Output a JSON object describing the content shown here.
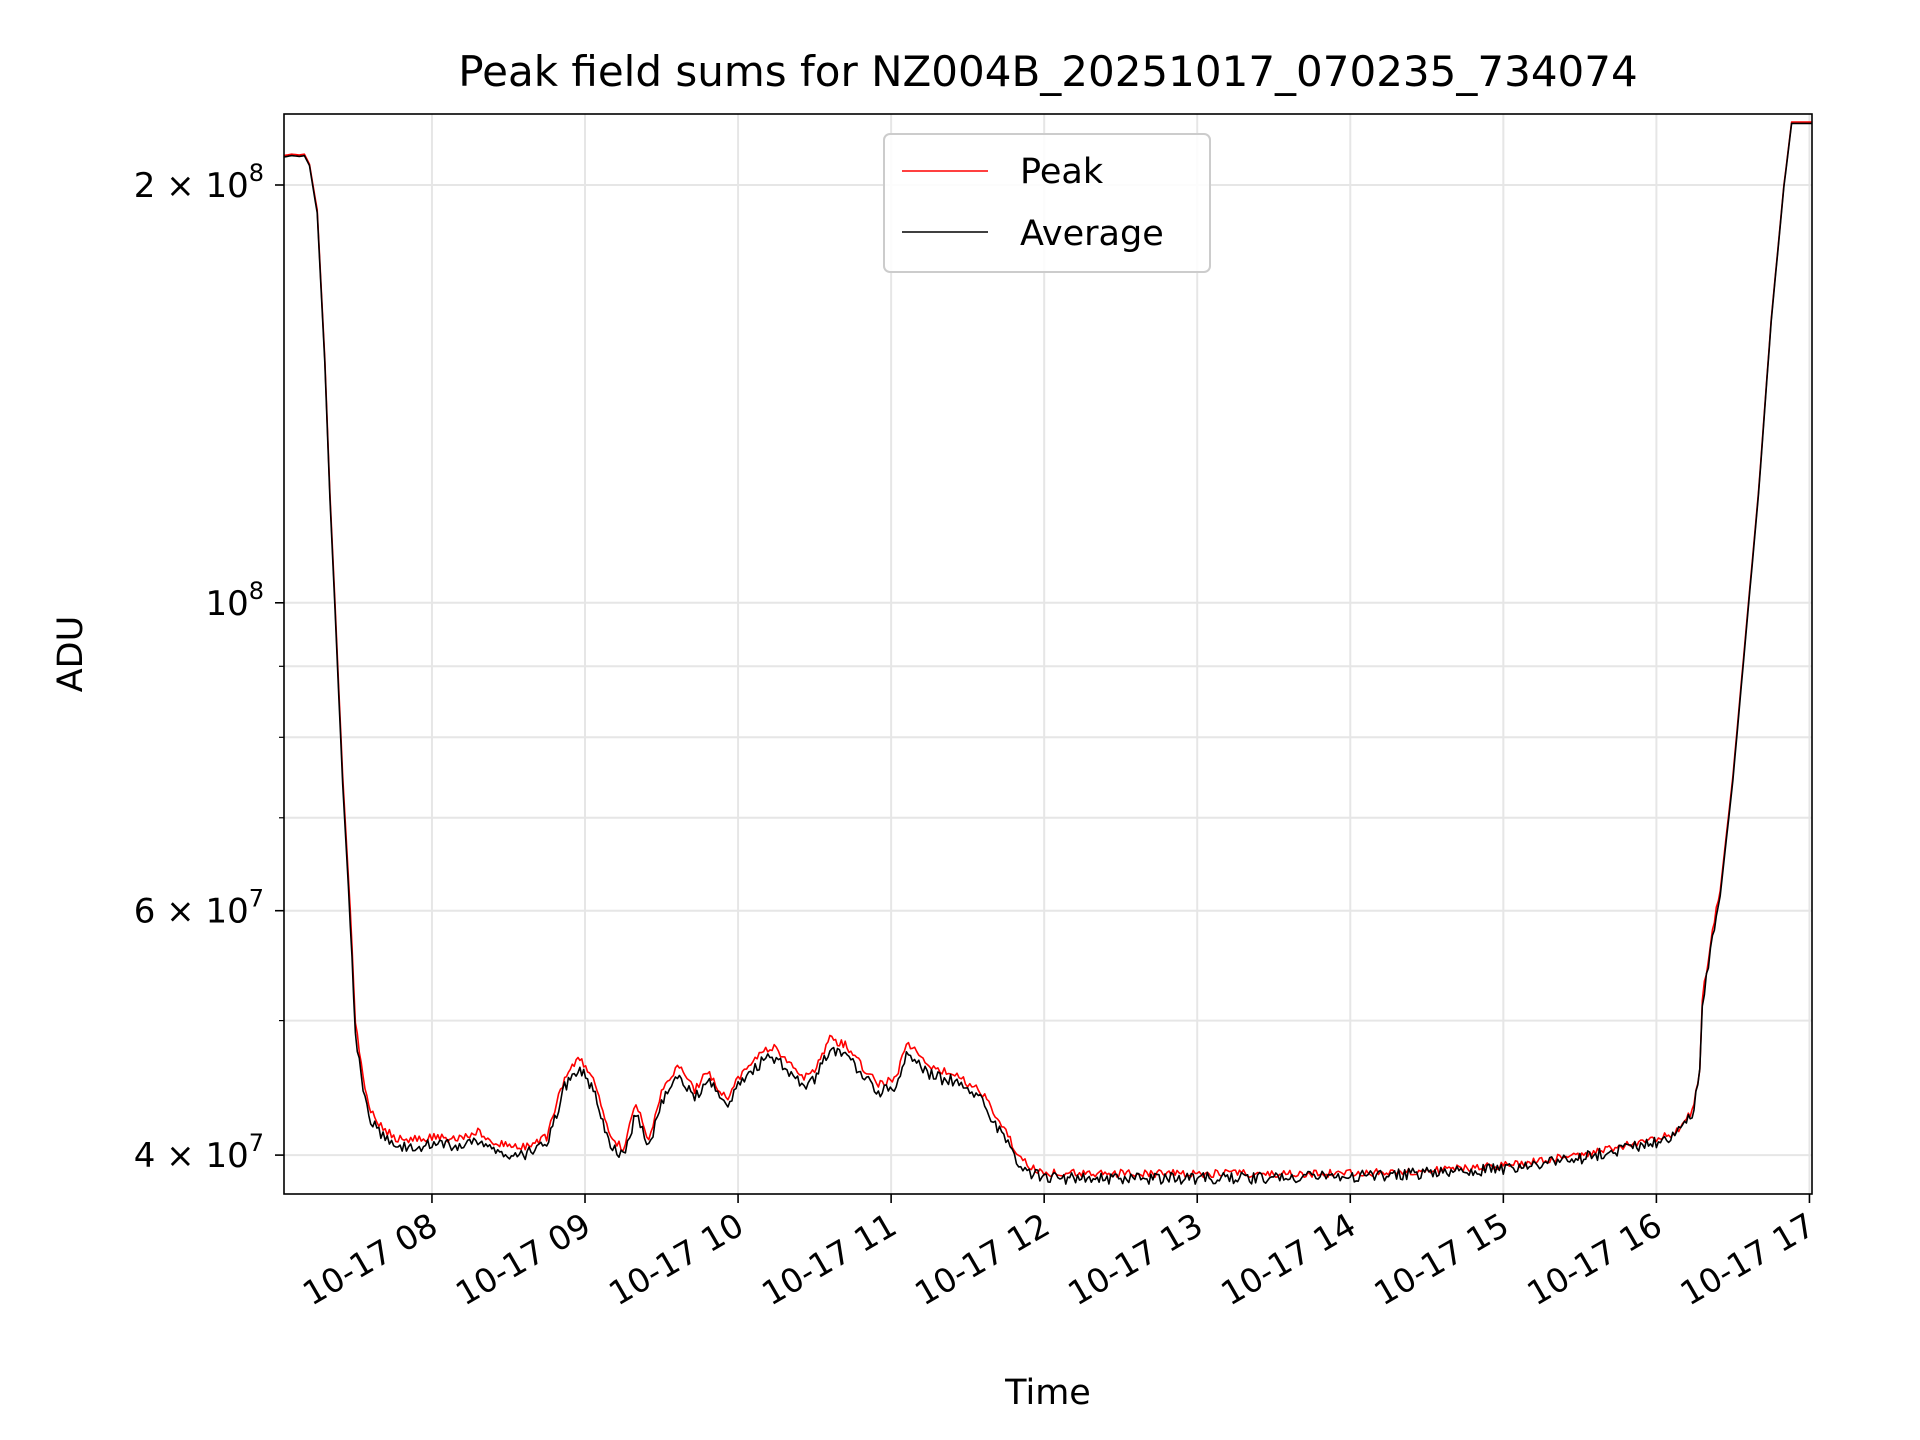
{
  "chart_data": {
    "type": "line",
    "title": "Peak field sums for NZ004B_20251017_070235_734074",
    "xlabel": "Time",
    "ylabel": "ADU",
    "y_scale": "log",
    "ylim": [
      37500000,
      225000000
    ],
    "xlim": [
      "2025-10-17 07:02",
      "2025-10-17 17:01"
    ],
    "grid": true,
    "legend_position": "upper center",
    "x_ticks": [
      {
        "t": "2025-10-17 08:00",
        "label": "10-17 08"
      },
      {
        "t": "2025-10-17 09:00",
        "label": "10-17 09"
      },
      {
        "t": "2025-10-17 10:00",
        "label": "10-17 10"
      },
      {
        "t": "2025-10-17 11:00",
        "label": "10-17 11"
      },
      {
        "t": "2025-10-17 12:00",
        "label": "10-17 12"
      },
      {
        "t": "2025-10-17 13:00",
        "label": "10-17 13"
      },
      {
        "t": "2025-10-17 14:00",
        "label": "10-17 14"
      },
      {
        "t": "2025-10-17 15:00",
        "label": "10-17 15"
      },
      {
        "t": "2025-10-17 16:00",
        "label": "10-17 16"
      },
      {
        "t": "2025-10-17 17:00",
        "label": "10-17 17"
      }
    ],
    "y_ticks_major": [
      {
        "v": 40000000,
        "base": "4",
        "exp": "7"
      },
      {
        "v": 60000000,
        "base": "6",
        "exp": "7"
      },
      {
        "v": 100000000,
        "base": "",
        "exp": "8"
      },
      {
        "v": 200000000,
        "base": "2",
        "exp": "8"
      }
    ],
    "y_ticks_minor": [
      50000000,
      70000000,
      80000000,
      90000000
    ],
    "series": [
      {
        "name": "Peak",
        "color": "#ff0000",
        "x": [
          "2025-10-17 07:02",
          "2025-10-17 07:05",
          "2025-10-17 07:08",
          "2025-10-17 07:10",
          "2025-10-17 07:12",
          "2025-10-17 07:15",
          "2025-10-17 07:18",
          "2025-10-17 07:20",
          "2025-10-17 07:22",
          "2025-10-17 07:25",
          "2025-10-17 07:28",
          "2025-10-17 07:30",
          "2025-10-17 07:33",
          "2025-10-17 07:36",
          "2025-10-17 07:40",
          "2025-10-17 07:45",
          "2025-10-17 07:50",
          "2025-10-17 07:55",
          "2025-10-17 08:00",
          "2025-10-17 08:10",
          "2025-10-17 08:18",
          "2025-10-17 08:25",
          "2025-10-17 08:35",
          "2025-10-17 08:45",
          "2025-10-17 08:52",
          "2025-10-17 08:58",
          "2025-10-17 09:04",
          "2025-10-17 09:10",
          "2025-10-17 09:15",
          "2025-10-17 09:20",
          "2025-10-17 09:25",
          "2025-10-17 09:30",
          "2025-10-17 09:37",
          "2025-10-17 09:43",
          "2025-10-17 09:48",
          "2025-10-17 09:52",
          "2025-10-17 09:56",
          "2025-10-17 10:00",
          "2025-10-17 10:05",
          "2025-10-17 10:10",
          "2025-10-17 10:15",
          "2025-10-17 10:20",
          "2025-10-17 10:25",
          "2025-10-17 10:30",
          "2025-10-17 10:36",
          "2025-10-17 10:42",
          "2025-10-17 10:48",
          "2025-10-17 10:55",
          "2025-10-17 11:02",
          "2025-10-17 11:06",
          "2025-10-17 11:10",
          "2025-10-17 11:15",
          "2025-10-17 11:20",
          "2025-10-17 11:25",
          "2025-10-17 11:30",
          "2025-10-17 11:35",
          "2025-10-17 11:40",
          "2025-10-17 11:45",
          "2025-10-17 11:50",
          "2025-10-17 11:55",
          "2025-10-17 12:00",
          "2025-10-17 12:10",
          "2025-10-17 12:30",
          "2025-10-17 13:00",
          "2025-10-17 13:30",
          "2025-10-17 14:00",
          "2025-10-17 14:30",
          "2025-10-17 15:00",
          "2025-10-17 15:30",
          "2025-10-17 15:50",
          "2025-10-17 16:00",
          "2025-10-17 16:08",
          "2025-10-17 16:14",
          "2025-10-17 16:17",
          "2025-10-17 16:18",
          "2025-10-17 16:22",
          "2025-10-17 16:25",
          "2025-10-17 16:30",
          "2025-10-17 16:35",
          "2025-10-17 16:40",
          "2025-10-17 16:45",
          "2025-10-17 16:50",
          "2025-10-17 16:53",
          "2025-10-17 17:01"
        ],
        "y": [
          210000000,
          210500000,
          210200000,
          210500000,
          207000000,
          192000000,
          150000000,
          120000000,
          100000000,
          75000000,
          60000000,
          50000000,
          45500000,
          43000000,
          42000000,
          41200000,
          41000000,
          41100000,
          41200000,
          41100000,
          41600000,
          40800000,
          40500000,
          41200000,
          45500000,
          47000000,
          45000000,
          41000000,
          40500000,
          43500000,
          41000000,
          44500000,
          46500000,
          44500000,
          46000000,
          44800000,
          44000000,
          45500000,
          46500000,
          47500000,
          47800000,
          46500000,
          45500000,
          46000000,
          48500000,
          48000000,
          46500000,
          45000000,
          45500000,
          48000000,
          47500000,
          46500000,
          46000000,
          45800000,
          45000000,
          44500000,
          43000000,
          41500000,
          40000000,
          39200000,
          38900000,
          38800000,
          38800000,
          38800000,
          38800000,
          38800000,
          39000000,
          39300000,
          40000000,
          40700000,
          41100000,
          41600000,
          43000000,
          46000000,
          52000000,
          58000000,
          62000000,
          75000000,
          95000000,
          120000000,
          160000000,
          200000000,
          222000000,
          222000000
        ]
      },
      {
        "name": "Average",
        "color": "#000000",
        "x": [
          "2025-10-17 07:02",
          "2025-10-17 07:05",
          "2025-10-17 07:08",
          "2025-10-17 07:10",
          "2025-10-17 07:12",
          "2025-10-17 07:15",
          "2025-10-17 07:18",
          "2025-10-17 07:20",
          "2025-10-17 07:22",
          "2025-10-17 07:25",
          "2025-10-17 07:28",
          "2025-10-17 07:30",
          "2025-10-17 07:33",
          "2025-10-17 07:36",
          "2025-10-17 07:40",
          "2025-10-17 07:45",
          "2025-10-17 07:50",
          "2025-10-17 07:55",
          "2025-10-17 08:00",
          "2025-10-17 08:10",
          "2025-10-17 08:18",
          "2025-10-17 08:25",
          "2025-10-17 08:35",
          "2025-10-17 08:45",
          "2025-10-17 08:52",
          "2025-10-17 08:58",
          "2025-10-17 09:04",
          "2025-10-17 09:10",
          "2025-10-17 09:15",
          "2025-10-17 09:20",
          "2025-10-17 09:25",
          "2025-10-17 09:30",
          "2025-10-17 09:37",
          "2025-10-17 09:43",
          "2025-10-17 09:48",
          "2025-10-17 09:52",
          "2025-10-17 09:56",
          "2025-10-17 10:00",
          "2025-10-17 10:05",
          "2025-10-17 10:10",
          "2025-10-17 10:15",
          "2025-10-17 10:20",
          "2025-10-17 10:25",
          "2025-10-17 10:30",
          "2025-10-17 10:36",
          "2025-10-17 10:42",
          "2025-10-17 10:48",
          "2025-10-17 10:55",
          "2025-10-17 11:02",
          "2025-10-17 11:06",
          "2025-10-17 11:10",
          "2025-10-17 11:15",
          "2025-10-17 11:20",
          "2025-10-17 11:25",
          "2025-10-17 11:30",
          "2025-10-17 11:35",
          "2025-10-17 11:40",
          "2025-10-17 11:45",
          "2025-10-17 11:50",
          "2025-10-17 11:55",
          "2025-10-17 12:00",
          "2025-10-17 12:10",
          "2025-10-17 12:30",
          "2025-10-17 13:00",
          "2025-10-17 13:30",
          "2025-10-17 14:00",
          "2025-10-17 14:30",
          "2025-10-17 15:00",
          "2025-10-17 15:30",
          "2025-10-17 15:50",
          "2025-10-17 16:00",
          "2025-10-17 16:08",
          "2025-10-17 16:14",
          "2025-10-17 16:17",
          "2025-10-17 16:18",
          "2025-10-17 16:22",
          "2025-10-17 16:25",
          "2025-10-17 16:30",
          "2025-10-17 16:35",
          "2025-10-17 16:40",
          "2025-10-17 16:45",
          "2025-10-17 16:50",
          "2025-10-17 16:53",
          "2025-10-17 17:01"
        ],
        "y": [
          209500000,
          210000000,
          209700000,
          210000000,
          206500000,
          191000000,
          149000000,
          119000000,
          99000000,
          74000000,
          59000000,
          49000000,
          44800000,
          42300000,
          41300000,
          40700000,
          40500000,
          40600000,
          40700000,
          40600000,
          41000000,
          40300000,
          40000000,
          40700000,
          44800000,
          46300000,
          44300000,
          40500000,
          39900000,
          42900000,
          40500000,
          43800000,
          45800000,
          43900000,
          45400000,
          44200000,
          43400000,
          44800000,
          45800000,
          46800000,
          47100000,
          45800000,
          44900000,
          45300000,
          47800000,
          47300000,
          45800000,
          44400000,
          44900000,
          47300000,
          46800000,
          45800000,
          45400000,
          45200000,
          44400000,
          43900000,
          42400000,
          40900000,
          39500000,
          38800000,
          38500000,
          38500000,
          38500000,
          38500000,
          38500000,
          38600000,
          38800000,
          39100000,
          39800000,
          40500000,
          40900000,
          41400000,
          42800000,
          45800000,
          51500000,
          57500000,
          61500000,
          74500000,
          94500000,
          119500000,
          159500000,
          199500000,
          221500000,
          221500000
        ]
      }
    ]
  }
}
